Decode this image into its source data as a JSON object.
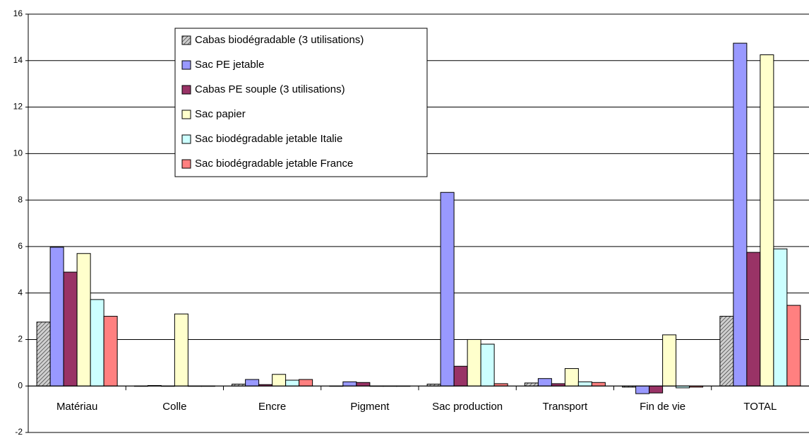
{
  "chart_data": {
    "type": "bar",
    "categories": [
      "Matériau",
      "Colle",
      "Encre",
      "Pigment",
      "Sac production",
      "Transport",
      "Fin de vie",
      "TOTAL"
    ],
    "series": [
      {
        "name": "Cabas biodégradable (3 utilisations)",
        "color": "#808080",
        "hatch": true,
        "values": [
          2.75,
          0,
          0.08,
          0,
          0.08,
          0.13,
          -0.05,
          3.0
        ]
      },
      {
        "name": "Sac PE jetable",
        "color": "#9999ff",
        "values": [
          5.97,
          0.02,
          0.28,
          0.18,
          8.33,
          0.32,
          -0.33,
          14.75
        ]
      },
      {
        "name": "Cabas PE souple (3 utilisations)",
        "color": "#993366",
        "values": [
          4.9,
          0,
          0.06,
          0.15,
          0.85,
          0.1,
          -0.3,
          5.75
        ]
      },
      {
        "name": "Sac papier",
        "color": "#ffffcc",
        "values": [
          5.7,
          3.1,
          0.5,
          0,
          2.0,
          0.75,
          2.2,
          14.25
        ]
      },
      {
        "name": "Sac biodégradable jetable Italie",
        "color": "#ccffff",
        "values": [
          3.72,
          0,
          0.25,
          0,
          1.8,
          0.18,
          -0.08,
          5.9
        ]
      },
      {
        "name": "Sac biodégradable jetable France",
        "color": "#ff8080",
        "values": [
          3.0,
          0,
          0.28,
          0,
          0.1,
          0.15,
          -0.05,
          3.47
        ]
      }
    ],
    "ylim": [
      -2,
      16
    ],
    "yticks": [
      -2,
      0,
      2,
      4,
      6,
      8,
      10,
      12,
      14,
      16
    ],
    "grid": true
  }
}
